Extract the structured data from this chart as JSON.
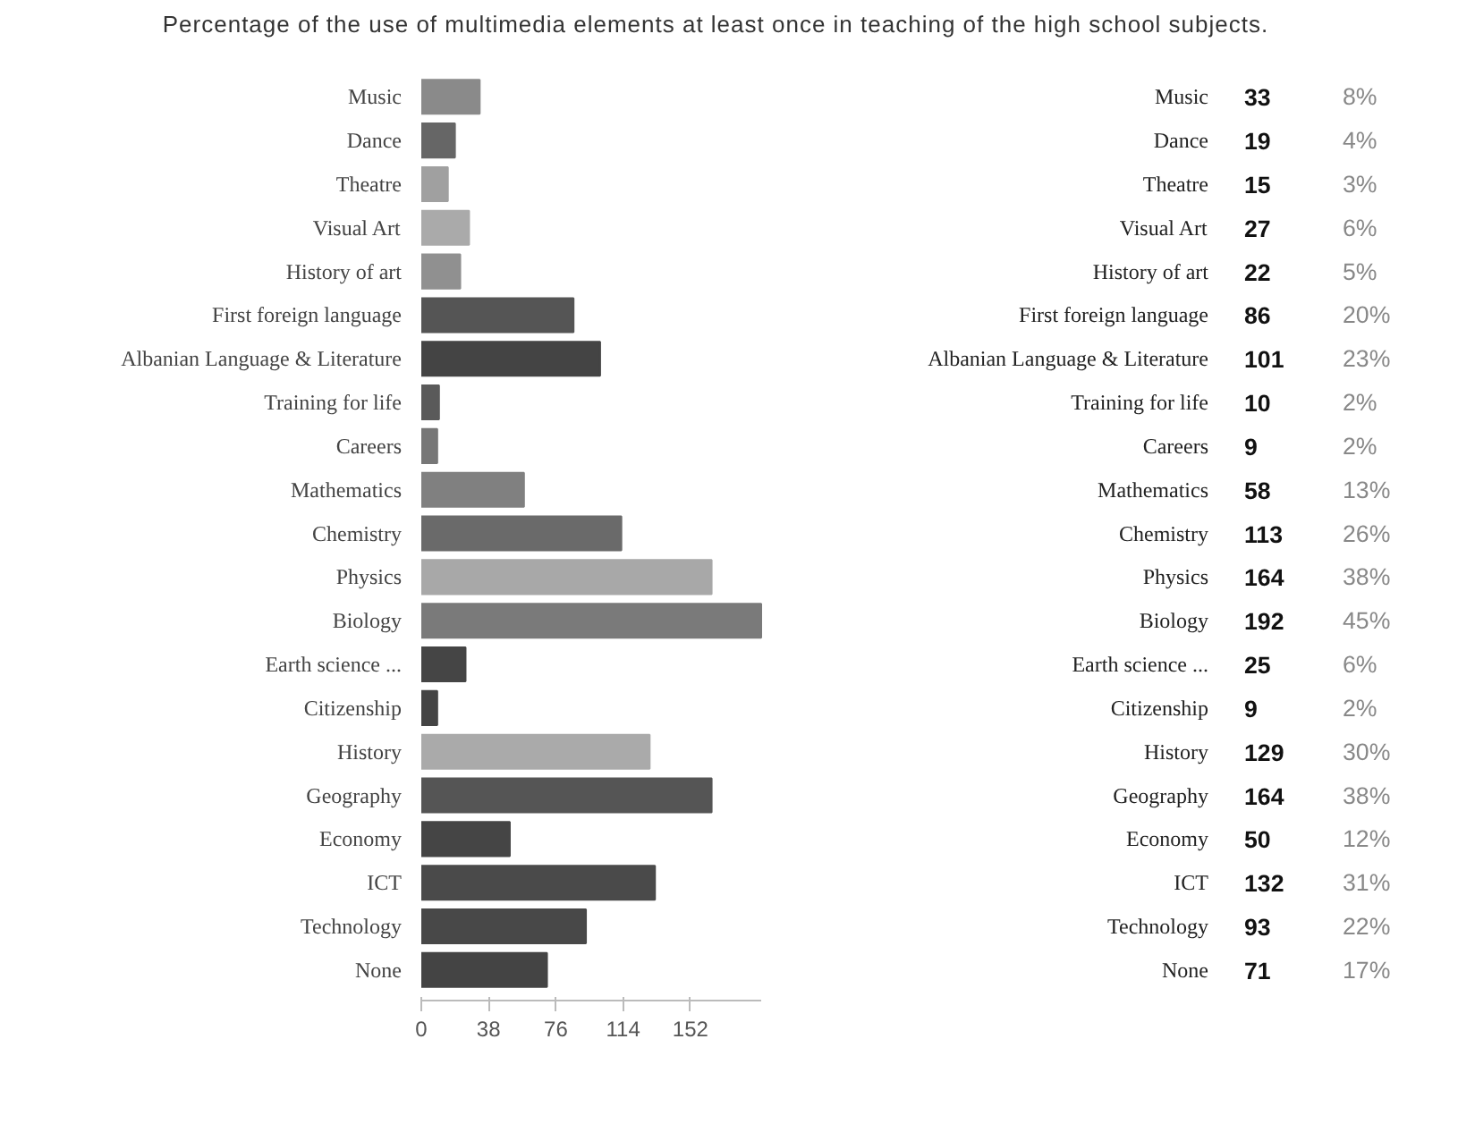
{
  "chart_data": {
    "type": "bar",
    "orientation": "horizontal",
    "title": "Percentage of the use of multimedia elements at least once in teaching of the high school subjects.",
    "categories": [
      "Music",
      "Dance",
      "Theatre",
      "Visual Art",
      "History of art",
      "First foreign language",
      "Albanian Language & Literature",
      "Training for life",
      "Careers",
      "Mathematics",
      "Chemistry",
      "Physics",
      "Biology",
      "Earth science ...",
      "Citizenship",
      "History",
      "Geography",
      "Economy",
      "ICT",
      "Technology",
      "None"
    ],
    "values": [
      33,
      19,
      15,
      27,
      22,
      86,
      101,
      10,
      9,
      58,
      113,
      164,
      192,
      25,
      9,
      129,
      164,
      50,
      132,
      93,
      71
    ],
    "colors": [
      "#8a8a8a",
      "#666666",
      "#a0a0a0",
      "#aaaaaa",
      "#909090",
      "#555555",
      "#444444",
      "#5a5a5a",
      "#777777",
      "#808080",
      "#6a6a6a",
      "#a8a8a8",
      "#7a7a7a",
      "#454545",
      "#444444",
      "#aaaaaa",
      "#555555",
      "#454545",
      "#4a4a4a",
      "#484848",
      "#444444"
    ],
    "xlim": [
      0,
      192
    ],
    "xticks": [
      0,
      38,
      76,
      114,
      152
    ],
    "annotations": [
      "33",
      "19",
      "15",
      "27",
      "22",
      "86",
      "101",
      "10",
      "9",
      "58",
      "113",
      "164",
      "192",
      "25",
      "9",
      "129",
      "164",
      "50",
      "132",
      "93",
      "71",
      "8%",
      "4%",
      "3%",
      "6%",
      "5%",
      "20%",
      "23%",
      "2%",
      "2%",
      "13%",
      "26%",
      "38%",
      "45%",
      "6%",
      "2%",
      "30%",
      "38%",
      "12%",
      "31%",
      "22%",
      "17%"
    ]
  }
}
